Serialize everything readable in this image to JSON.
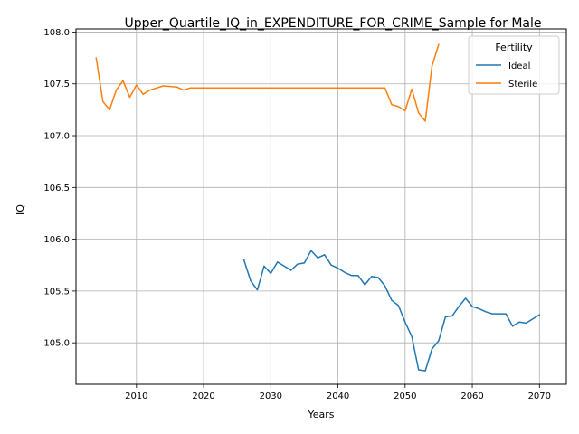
{
  "chart_data": {
    "type": "line",
    "title": "Upper_Quartile_IQ_in_EXPENDITURE_FOR_CRIME_Sample for Male",
    "xlabel": "Years",
    "ylabel": "IQ",
    "xlim": [
      2001,
      2074
    ],
    "ylim": [
      104.6,
      108.03
    ],
    "xticks": [
      2010,
      2020,
      2030,
      2040,
      2050,
      2060,
      2070
    ],
    "yticks": [
      105.0,
      105.5,
      106.0,
      106.5,
      107.0,
      107.5,
      108.0
    ],
    "grid": true,
    "legend": {
      "title": "Fertility",
      "position": "top-right"
    },
    "series": [
      {
        "name": "Ideal",
        "color": "#1f77b4",
        "points": [
          [
            2026,
            105.8
          ],
          [
            2027,
            105.6
          ],
          [
            2028,
            105.51
          ],
          [
            2029,
            105.74
          ],
          [
            2030,
            105.67
          ],
          [
            2031,
            105.78
          ],
          [
            2032,
            105.74
          ],
          [
            2033,
            105.7
          ],
          [
            2034,
            105.76
          ],
          [
            2035,
            105.77
          ],
          [
            2036,
            105.89
          ],
          [
            2037,
            105.82
          ],
          [
            2038,
            105.85
          ],
          [
            2039,
            105.75
          ],
          [
            2040,
            105.72
          ],
          [
            2041,
            105.68
          ],
          [
            2042,
            105.65
          ],
          [
            2043,
            105.65
          ],
          [
            2044,
            105.56
          ],
          [
            2045,
            105.64
          ],
          [
            2046,
            105.63
          ],
          [
            2047,
            105.55
          ],
          [
            2048,
            105.41
          ],
          [
            2049,
            105.36
          ],
          [
            2050,
            105.2
          ],
          [
            2051,
            105.06
          ],
          [
            2052,
            104.74
          ],
          [
            2053,
            104.73
          ],
          [
            2054,
            104.94
          ],
          [
            2055,
            105.02
          ],
          [
            2056,
            105.25
          ],
          [
            2057,
            105.26
          ],
          [
            2058,
            105.35
          ],
          [
            2059,
            105.43
          ],
          [
            2060,
            105.35
          ],
          [
            2061,
            105.33
          ],
          [
            2062,
            105.3
          ],
          [
            2063,
            105.28
          ],
          [
            2064,
            105.28
          ],
          [
            2065,
            105.28
          ],
          [
            2066,
            105.16
          ],
          [
            2067,
            105.2
          ],
          [
            2068,
            105.19
          ],
          [
            2069,
            105.23
          ],
          [
            2070,
            105.27
          ]
        ]
      },
      {
        "name": "Sterile",
        "color": "#ff7f0e",
        "points": [
          [
            2004,
            107.75
          ],
          [
            2005,
            107.33
          ],
          [
            2006,
            107.25
          ],
          [
            2007,
            107.44
          ],
          [
            2008,
            107.53
          ],
          [
            2009,
            107.37
          ],
          [
            2010,
            107.49
          ],
          [
            2011,
            107.4
          ],
          [
            2012,
            107.44
          ],
          [
            2014,
            107.48
          ],
          [
            2016,
            107.47
          ],
          [
            2017,
            107.44
          ],
          [
            2018,
            107.46
          ],
          [
            2020,
            107.46
          ],
          [
            2025,
            107.46
          ],
          [
            2030,
            107.46
          ],
          [
            2035,
            107.46
          ],
          [
            2040,
            107.46
          ],
          [
            2045,
            107.46
          ],
          [
            2047,
            107.46
          ],
          [
            2048,
            107.3
          ],
          [
            2049,
            107.28
          ],
          [
            2050,
            107.24
          ],
          [
            2051,
            107.45
          ],
          [
            2052,
            107.22
          ],
          [
            2053,
            107.14
          ],
          [
            2054,
            107.67
          ],
          [
            2055,
            107.88
          ]
        ]
      }
    ]
  }
}
